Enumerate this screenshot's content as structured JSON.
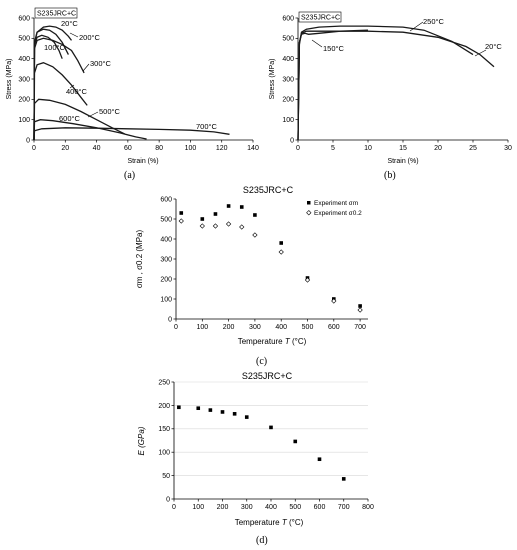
{
  "figures": {
    "a": {
      "caption": "(a)",
      "box_label": "S235JRC+C",
      "xlabel": "Strain (%)",
      "ylabel": "Stress (MPa)",
      "xticks": [
        0,
        20,
        40,
        60,
        80,
        100,
        120,
        140
      ],
      "yticks": [
        0,
        100,
        200,
        300,
        400,
        500,
        600
      ],
      "xlim": [
        0,
        140
      ],
      "ylim": [
        0,
        600
      ],
      "curve_labels": [
        "20°C",
        "200°C",
        "100°C",
        "300°C",
        "400°C",
        "500°C",
        "600°C",
        "700°C"
      ]
    },
    "b": {
      "caption": "(b)",
      "box_label": "S235JRC+C",
      "xlabel": "Strain (%)",
      "ylabel": "Stress (MPa)",
      "xticks": [
        0,
        5,
        10,
        15,
        20,
        25,
        30
      ],
      "yticks": [
        0,
        100,
        200,
        300,
        400,
        500,
        600
      ],
      "xlim": [
        0,
        30
      ],
      "ylim": [
        0,
        600
      ],
      "curve_labels": [
        "250°C",
        "150°C",
        "20°C"
      ]
    },
    "c": {
      "caption": "(c)",
      "title": "S235JRC+C",
      "xlabel_main": "Temperature ",
      "xlabel_sym": "T",
      "xlabel_unit": " (°C)",
      "ylabel": "σm , σ0.2 (MPa)",
      "legend": [
        "Experiment σm",
        "Experiment σ0.2"
      ],
      "xticks": [
        0,
        100,
        200,
        300,
        400,
        500,
        600,
        700
      ],
      "yticks": [
        0,
        100,
        200,
        300,
        400,
        500,
        600
      ],
      "xlim": [
        0,
        730
      ],
      "ylim": [
        0,
        600
      ]
    },
    "d": {
      "caption": "(d)",
      "title": "S235JRC+C",
      "xlabel_main": "Temperature ",
      "xlabel_sym": "T",
      "xlabel_unit": " (°C)",
      "ylabel": "E (GPa)",
      "xticks": [
        0,
        100,
        200,
        300,
        400,
        500,
        600,
        700,
        800
      ],
      "yticks": [
        0,
        50,
        100,
        150,
        200,
        250
      ],
      "xlim": [
        0,
        800
      ],
      "ylim": [
        0,
        250
      ]
    }
  },
  "chart_data": [
    {
      "type": "line",
      "title": "",
      "xlabel": "Strain (%)",
      "ylabel": "Stress (MPa)",
      "xlim": [
        0,
        140
      ],
      "ylim": [
        0,
        600
      ],
      "grid": false,
      "series": [
        {
          "name": "20°C",
          "x": [
            0,
            0.3,
            2,
            6,
            10,
            14,
            18,
            22,
            24
          ],
          "y": [
            0,
            480,
            530,
            555,
            560,
            555,
            540,
            510,
            490
          ]
        },
        {
          "name": "100°C",
          "x": [
            0,
            0.3,
            2,
            5,
            9,
            13,
            16,
            18
          ],
          "y": [
            0,
            470,
            505,
            515,
            505,
            480,
            440,
            400
          ]
        },
        {
          "name": "200°C",
          "x": [
            0,
            0.3,
            2,
            6,
            10,
            14,
            18,
            22
          ],
          "y": [
            0,
            480,
            530,
            545,
            540,
            520,
            480,
            420
          ]
        },
        {
          "name": "300°C",
          "x": [
            0,
            0.3,
            2,
            6,
            12,
            18,
            24,
            28,
            32
          ],
          "y": [
            0,
            450,
            490,
            500,
            490,
            470,
            440,
            390,
            330
          ]
        },
        {
          "name": "400°C",
          "x": [
            0,
            0.3,
            2,
            6,
            12,
            18,
            24,
            30,
            34
          ],
          "y": [
            0,
            330,
            370,
            380,
            360,
            320,
            270,
            210,
            170
          ]
        },
        {
          "name": "500°C",
          "x": [
            0,
            0.3,
            3,
            10,
            20,
            30,
            40,
            50,
            58
          ],
          "y": [
            0,
            180,
            200,
            195,
            175,
            140,
            100,
            60,
            30
          ]
        },
        {
          "name": "600°C",
          "x": [
            0,
            0.3,
            4,
            12,
            25,
            40,
            55,
            65,
            72
          ],
          "y": [
            0,
            90,
            100,
            95,
            80,
            60,
            35,
            15,
            5
          ]
        },
        {
          "name": "700°C",
          "x": [
            0,
            0.3,
            5,
            20,
            40,
            60,
            80,
            100,
            115,
            125
          ],
          "y": [
            0,
            45,
            55,
            60,
            58,
            55,
            52,
            48,
            40,
            28
          ]
        }
      ]
    },
    {
      "type": "line",
      "title": "",
      "xlabel": "Strain (%)",
      "ylabel": "Stress (MPa)",
      "xlim": [
        0,
        30
      ],
      "ylim": [
        0,
        600
      ],
      "grid": false,
      "series": [
        {
          "name": "20°C",
          "x": [
            0,
            0.2,
            0.5,
            1.2,
            3,
            6,
            10,
            15,
            20,
            24,
            26,
            28
          ],
          "y": [
            0,
            480,
            525,
            535,
            535,
            535,
            535,
            530,
            505,
            460,
            420,
            360
          ]
        },
        {
          "name": "150°C",
          "x": [
            0,
            0.2,
            0.5,
            1.0,
            1.5,
            3,
            6,
            10
          ],
          "y": [
            0,
            480,
            520,
            525,
            520,
            525,
            535,
            540
          ]
        },
        {
          "name": "250°C",
          "x": [
            0,
            0.2,
            0.5,
            1.2,
            3,
            6,
            10,
            15,
            18,
            22,
            25
          ],
          "y": [
            0,
            470,
            530,
            545,
            555,
            560,
            560,
            555,
            540,
            485,
            420
          ]
        }
      ]
    },
    {
      "type": "scatter",
      "title": "S235JRC+C",
      "xlabel": "Temperature T (°C)",
      "ylabel": "σm , σ0.2 (MPa)",
      "xlim": [
        0,
        730
      ],
      "ylim": [
        0,
        600
      ],
      "legend_position": "top-right",
      "grid": false,
      "series": [
        {
          "name": "Experiment σm",
          "x": [
            20,
            100,
            150,
            200,
            250,
            300,
            400,
            500,
            600,
            700
          ],
          "y": [
            530,
            500,
            525,
            565,
            560,
            520,
            380,
            205,
            100,
            65
          ]
        },
        {
          "name": "Experiment σ0.2",
          "x": [
            20,
            100,
            150,
            200,
            250,
            300,
            400,
            500,
            600,
            700
          ],
          "y": [
            490,
            465,
            465,
            475,
            460,
            420,
            335,
            195,
            90,
            45
          ]
        }
      ]
    },
    {
      "type": "scatter",
      "title": "S235JRC+C",
      "xlabel": "Temperature T (°C)",
      "ylabel": "E (GPa)",
      "xlim": [
        0,
        800
      ],
      "ylim": [
        0,
        250
      ],
      "grid": true,
      "series": [
        {
          "name": "",
          "x": [
            20,
            100,
            150,
            200,
            250,
            300,
            400,
            500,
            600,
            700
          ],
          "y": [
            196,
            194,
            190,
            186,
            182,
            175,
            153,
            123,
            85,
            43
          ]
        }
      ]
    }
  ]
}
